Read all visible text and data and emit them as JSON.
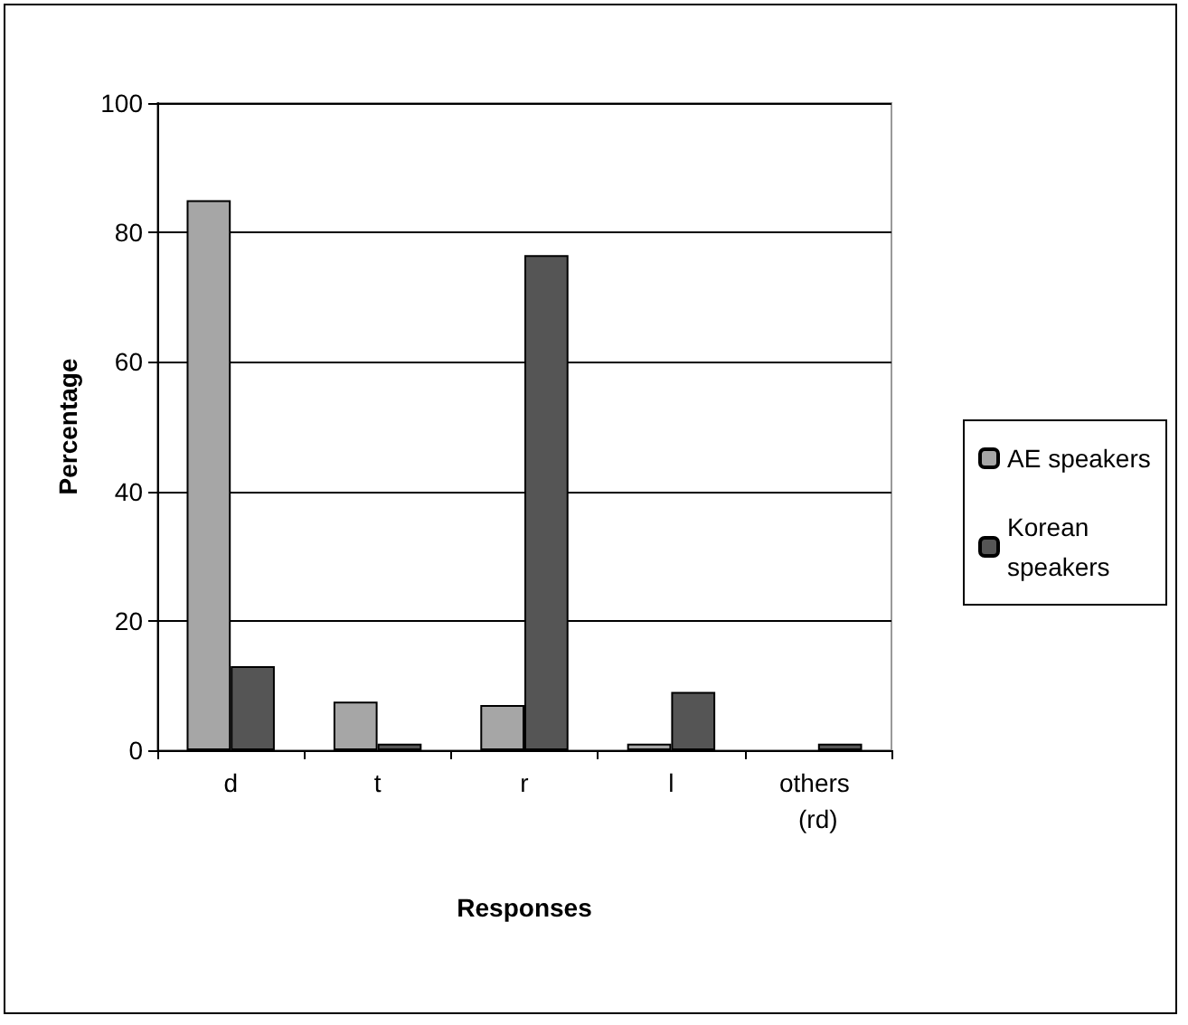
{
  "chart_data": {
    "type": "bar",
    "xlabel": "Responses",
    "ylabel": "Percentage",
    "categories": [
      "d",
      "t",
      "r",
      "l",
      "others (rd)"
    ],
    "series": [
      {
        "name": "AE speakers",
        "color": "#a6a6a6",
        "values": [
          85,
          7.5,
          7,
          1,
          null
        ]
      },
      {
        "name": "Korean speakers",
        "color": "#555555",
        "values": [
          13,
          1,
          76.5,
          9,
          1
        ]
      }
    ],
    "ylim": [
      0,
      100
    ],
    "yticks": [
      0,
      20,
      40,
      60,
      80,
      100
    ],
    "grid": "y",
    "legend": "right"
  }
}
